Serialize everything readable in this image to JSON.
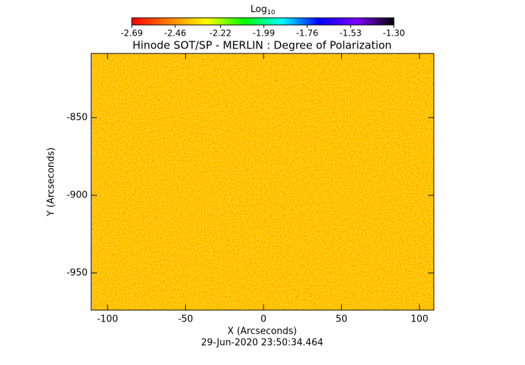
{
  "chart_data": {
    "type": "heatmap",
    "title": "Hinode SOT/SP - MERLIN : Degree of Polarization",
    "xlabel": "X (Arcseconds)",
    "ylabel": "Y (Arcseconds)",
    "footer": "29-Jun-2020 23:50:34.464",
    "xlim": [
      -110.5,
      109.2
    ],
    "xticks": [
      -100,
      -50,
      0,
      50,
      100
    ],
    "ylim": [
      -973.9,
      -808.7
    ],
    "yticks": [
      -950,
      -900,
      -850
    ],
    "colorbar": {
      "label": "Log",
      "label_sub": "10",
      "lim": [
        -2.69,
        -1.3
      ],
      "ticks": [
        -2.69,
        -2.46,
        -2.22,
        -1.99,
        -1.76,
        -1.53,
        {
          "value": -1.3,
          "label": "-1.30"
        }
      ],
      "colors": [
        "#ff0000",
        "#ff8000",
        "#ffff00",
        "#00ff00",
        "#00ffff",
        "#0000ff",
        "#8000ff",
        "#000000"
      ]
    }
  }
}
